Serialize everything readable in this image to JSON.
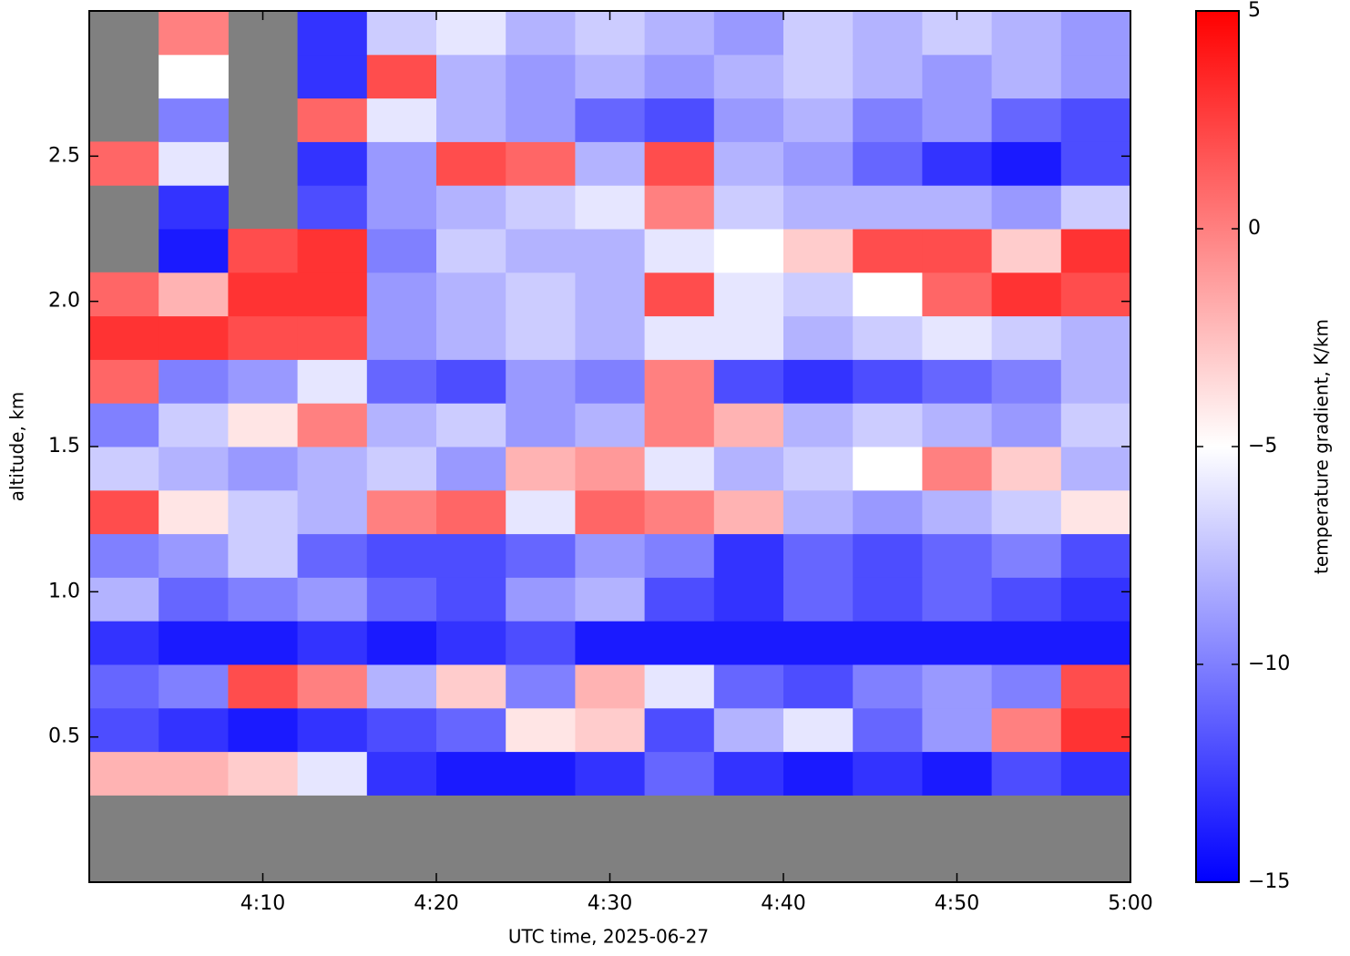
{
  "chart_data": {
    "type": "heatmap",
    "xlabel": "UTC time,  2025-06-27",
    "ylabel": "altitude, km",
    "colorbar_label": "temperature gradient, K/km",
    "xbins": [
      240,
      244,
      248,
      252,
      256,
      260,
      264,
      268,
      272,
      276,
      280,
      284,
      288,
      292,
      296,
      300
    ],
    "ybins": [
      0,
      0.15,
      0.3,
      0.45,
      0.6,
      0.75,
      0.9,
      1.05,
      1.2,
      1.35,
      1.5,
      1.65,
      1.8,
      1.95,
      2.1,
      2.25,
      2.4,
      2.55,
      2.7,
      2.85,
      3.0
    ],
    "values": [
      [
        null,
        null,
        null,
        null,
        null,
        null,
        null,
        null,
        null,
        null,
        null,
        null,
        null,
        null,
        null
      ],
      [
        null,
        null,
        null,
        null,
        null,
        null,
        null,
        null,
        null,
        null,
        null,
        null,
        null,
        null,
        null
      ],
      [
        -2,
        -2,
        -3,
        -6,
        -13,
        -14,
        -14,
        -13,
        -11,
        -13,
        -14,
        -13,
        -14,
        -12,
        -13
      ],
      [
        -12,
        -13,
        -14,
        -13,
        -12,
        -11,
        -4,
        -3,
        -12,
        -8,
        -6,
        -11,
        -9,
        0,
        3
      ],
      [
        -11,
        -10,
        2,
        0,
        -8,
        -3,
        -10,
        -2,
        -6,
        -11,
        -12,
        -10,
        -9,
        -10,
        2
      ],
      [
        -13,
        -14,
        -14,
        -13,
        -14,
        -13,
        -12,
        -14,
        -14,
        -14,
        -14,
        -14,
        -14,
        -14,
        -14
      ],
      [
        -8,
        -11,
        -10,
        -9,
        -11,
        -12,
        -9,
        -8,
        -12,
        -13,
        -11,
        -12,
        -11,
        -12,
        -13
      ],
      [
        -10,
        -9,
        -7,
        -11,
        -12,
        -12,
        -11,
        -9,
        -10,
        -13,
        -11,
        -12,
        -11,
        -10,
        -12
      ],
      [
        2,
        -4,
        -7,
        -8,
        0,
        1,
        -6,
        1,
        0,
        -2,
        -8,
        -9,
        -8,
        -7,
        -4
      ],
      [
        -7,
        -8,
        -9,
        -8,
        -7,
        -9,
        -2,
        -1,
        -6,
        -8,
        -7,
        -5,
        0,
        -3,
        -8
      ],
      [
        -10,
        -7,
        -4,
        0,
        -8,
        -7,
        -9,
        -8,
        0,
        -2,
        -8,
        -7,
        -8,
        -9,
        -7
      ],
      [
        1,
        -10,
        -9,
        -6,
        -11,
        -12,
        -9,
        -10,
        0,
        -12,
        -13,
        -12,
        -11,
        -10,
        -8
      ],
      [
        3,
        3,
        2,
        2,
        -9,
        -8,
        -7,
        -8,
        -6,
        -6,
        -8,
        -7,
        -6,
        -7,
        -8
      ],
      [
        1,
        -2,
        3,
        3,
        -9,
        -8,
        -7,
        -8,
        2,
        -6,
        -7,
        -5,
        1,
        3,
        2
      ],
      [
        null,
        -14,
        2,
        3,
        -10,
        -7,
        -8,
        -8,
        -6,
        -5,
        -3,
        2,
        2,
        -3,
        3
      ],
      [
        null,
        -13,
        null,
        -12,
        -9,
        -8,
        -7,
        -6,
        0,
        -7,
        -8,
        -8,
        -8,
        -9,
        -7
      ],
      [
        1,
        -6,
        null,
        -13,
        -9,
        2,
        1,
        -8,
        2,
        -8,
        -9,
        -11,
        -13,
        -14,
        -12
      ],
      [
        null,
        -10,
        null,
        1,
        -6,
        -8,
        -9,
        -11,
        -12,
        -9,
        -8,
        -10,
        -9,
        -11,
        -12
      ],
      [
        null,
        -5,
        null,
        -13,
        2,
        -8,
        -9,
        -8,
        -9,
        -8,
        -7,
        -8,
        -9,
        -8,
        -9
      ],
      [
        null,
        0,
        null,
        -13,
        -7,
        -6,
        -8,
        -7,
        -8,
        -9,
        -7,
        -8,
        -7,
        -8,
        -9
      ]
    ],
    "xlim": [
      240,
      300
    ],
    "xticks": [
      {
        "value": 250,
        "label": "4:10"
      },
      {
        "value": 260,
        "label": "4:20"
      },
      {
        "value": 270,
        "label": "4:30"
      },
      {
        "value": 280,
        "label": "4:40"
      },
      {
        "value": 290,
        "label": "4:50"
      },
      {
        "value": 300,
        "label": "5:00"
      }
    ],
    "ylim": [
      0,
      3.0
    ],
    "yticks": [
      0.5,
      {
        "value": 1,
        "label": "1.0"
      },
      1.5,
      {
        "value": 2,
        "label": "2.0"
      },
      2.5
    ],
    "clim": [
      -15,
      5
    ],
    "cticks": [
      {
        "value": -15,
        "label": "−15"
      },
      {
        "value": -10,
        "label": "−10"
      },
      {
        "value": -5,
        "label": "−5"
      },
      0,
      5
    ],
    "colors": [
      "#0000ff",
      "#ffffff",
      "#ff0000"
    ],
    "nan_color": "#808080"
  }
}
